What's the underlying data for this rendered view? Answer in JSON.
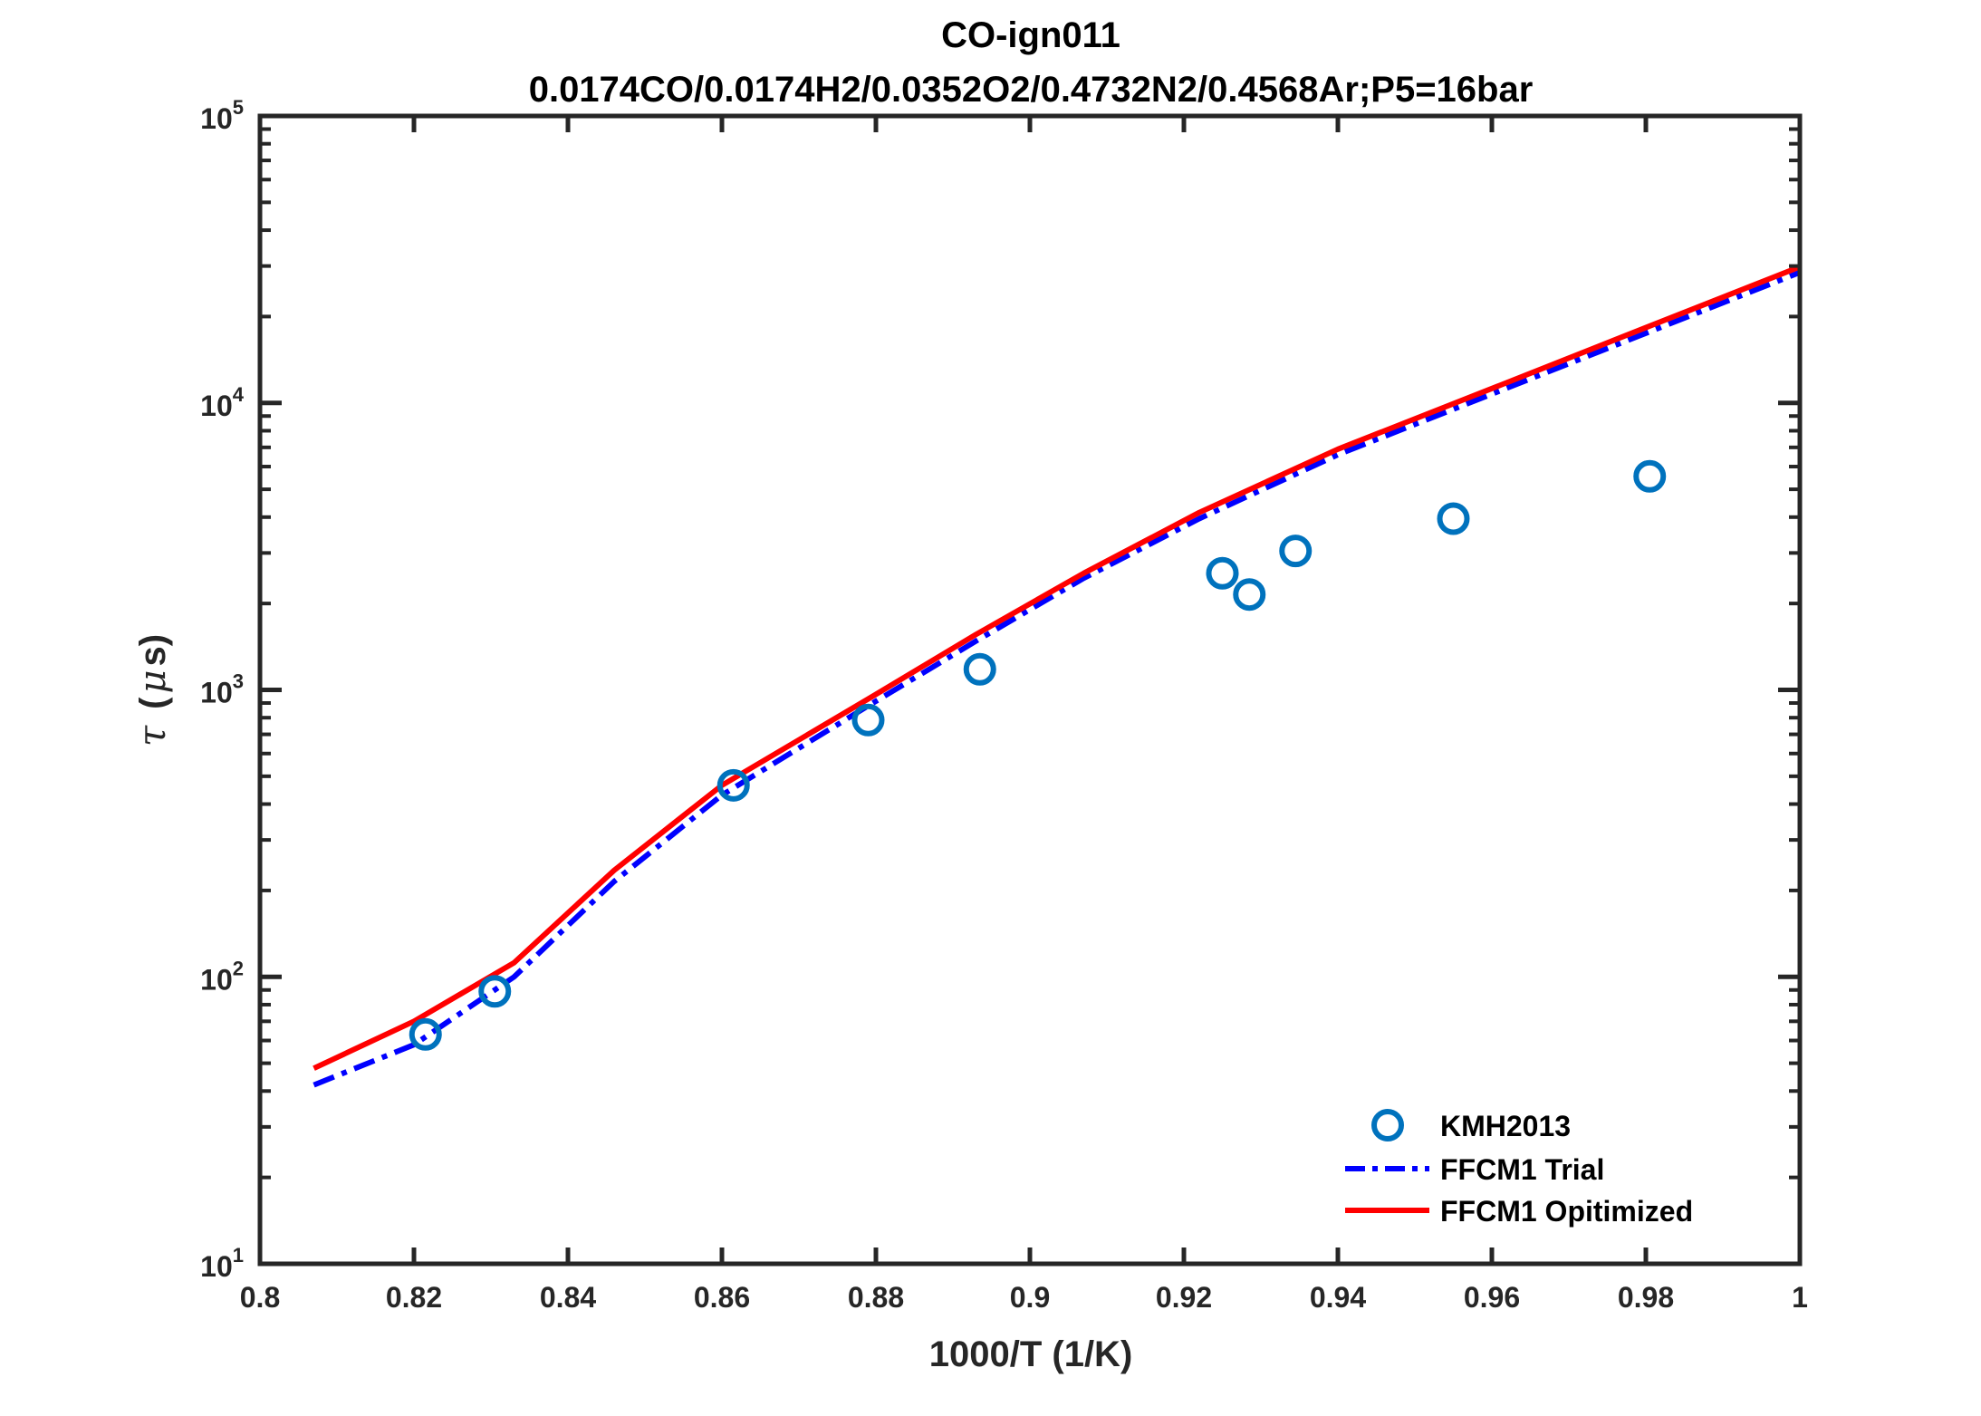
{
  "chart_data": {
    "type": "line",
    "title": "CO-ign011",
    "subtitle": "0.0174CO/0.0174H2/0.0352O2/0.4732N2/0.4568Ar;P5=16bar",
    "xlabel": "1000/T (1/K)",
    "ylabel_symbol": "τ",
    "ylabel_unit": "(μs)",
    "ylabel_unit_open": "(",
    "ylabel_unit_mu": "μ",
    "ylabel_unit_rest": "s)",
    "xlim": [
      0.8,
      1.0
    ],
    "ylim": [
      10,
      100000
    ],
    "yscale": "log",
    "grid": false,
    "legend_position": "bottom-right",
    "x_ticks": [
      "0.8",
      "0.82",
      "0.84",
      "0.86",
      "0.88",
      "0.9",
      "0.92",
      "0.94",
      "0.96",
      "0.98",
      "1"
    ],
    "y_ticks": [
      {
        "base": "10",
        "exp": "1"
      },
      {
        "base": "10",
        "exp": "2"
      },
      {
        "base": "10",
        "exp": "3"
      },
      {
        "base": "10",
        "exp": "4"
      },
      {
        "base": "10",
        "exp": "5"
      }
    ],
    "series": [
      {
        "name": "KMH2013",
        "style": "markers",
        "color": "#0072BD",
        "x": [
          0.8215,
          0.8305,
          0.8615,
          0.879,
          0.8935,
          0.925,
          0.9285,
          0.9345,
          0.955,
          0.9805
        ],
        "y": [
          63,
          89,
          465,
          785,
          1180,
          2550,
          2150,
          3050,
          3950,
          5550
        ]
      },
      {
        "name": "FFCM1 Trial",
        "style": "dashdot",
        "color": "#0000FF",
        "x": [
          0.807,
          0.82,
          0.833,
          0.846,
          0.86,
          0.879,
          0.893,
          0.907,
          0.922,
          0.94,
          0.961,
          0.98,
          1.0
        ],
        "y": [
          42,
          58,
          100,
          215,
          430,
          880,
          1480,
          2450,
          3950,
          6600,
          11000,
          17500,
          28500
        ]
      },
      {
        "name": "FFCM1 Opitimized",
        "style": "solid",
        "color": "#FF0000",
        "x": [
          0.807,
          0.82,
          0.833,
          0.846,
          0.86,
          0.879,
          0.893,
          0.907,
          0.922,
          0.94,
          0.961,
          0.98,
          1.0
        ],
        "y": [
          48,
          70,
          112,
          235,
          465,
          930,
          1560,
          2550,
          4150,
          6900,
          11500,
          18300,
          29800
        ]
      }
    ]
  }
}
